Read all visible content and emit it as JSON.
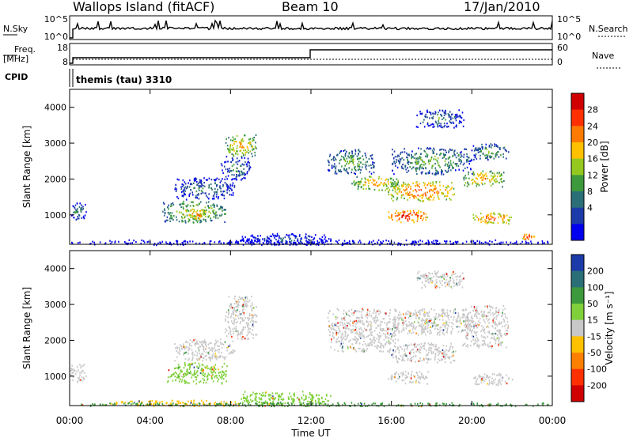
{
  "header": {
    "station": "Wallops Island (fitACF)",
    "beam": "Beam 10",
    "date": "17/Jan/2010"
  },
  "top_panels": {
    "nsky_label": "N.Sky",
    "nsky_top_tick": "10^5",
    "nsky_bottom_tick": "10^0",
    "nsearch_label": "N.Search",
    "nsearch_top_tick": "10^5",
    "nsearch_bottom_tick": "10^0",
    "freq_label_line1": "Freq.",
    "freq_label_line2": "[MHz]",
    "freq_top_tick": "18",
    "freq_bottom_tick": "8",
    "nave_label": "Nave",
    "nave_top_tick": "60",
    "nave_bottom_tick": "0",
    "cpid_label": "CPID",
    "cpid_text": "themis (tau) 3310"
  },
  "power_colorbar": {
    "label": "Power [dB]",
    "ticks": [
      "28",
      "24",
      "20",
      "16",
      "12",
      "8",
      "4"
    ],
    "colors": [
      "#d10000",
      "#ff3000",
      "#ff7a00",
      "#ffc000",
      "#94c81e",
      "#3c9a3c",
      "#2a6e78",
      "#1c3aa8",
      "#0000f0"
    ]
  },
  "velocity_colorbar": {
    "label": "Velocity [m s⁻¹]",
    "ticks": [
      "200",
      "100",
      "50",
      "15",
      "-15",
      "-50",
      "-100",
      "-200"
    ],
    "colors": [
      "#1c3aa8",
      "#2a6e78",
      "#3c9a3c",
      "#7fd03a",
      "#c8c8c8",
      "#ffc000",
      "#ff8000",
      "#ff3000",
      "#d10000"
    ]
  },
  "chart_data": [
    {
      "type": "heatmap",
      "name": "power",
      "ylabel": "Slant Range [km]",
      "y_ticks": [
        "1000",
        "2000",
        "3000",
        "4000"
      ],
      "ylim": [
        180,
        4500
      ],
      "x_ticks": [
        "00:00",
        "04:00",
        "08:00",
        "12:00",
        "16:00",
        "20:00",
        "00:00"
      ],
      "xlim_hours": [
        0,
        24
      ],
      "xlabel": "Time UT",
      "blobs": [
        {
          "t0": 0.0,
          "t1": 0.8,
          "r0": 850,
          "r1": 1350,
          "level": 3
        },
        {
          "t0": 4.6,
          "t1": 7.8,
          "r0": 800,
          "r1": 1400,
          "level": 5
        },
        {
          "t0": 5.9,
          "t1": 6.8,
          "r0": 900,
          "r1": 1150,
          "level": 7
        },
        {
          "t0": 5.2,
          "t1": 8.2,
          "r0": 1450,
          "r1": 2050,
          "level": 3
        },
        {
          "t0": 7.7,
          "t1": 9.3,
          "r0": 2650,
          "r1": 3250,
          "level": 6
        },
        {
          "t0": 7.5,
          "t1": 9.0,
          "r0": 2000,
          "r1": 2650,
          "level": 3
        },
        {
          "t0": 12.8,
          "t1": 15.2,
          "r0": 2150,
          "r1": 2850,
          "level": 4
        },
        {
          "t0": 14.0,
          "t1": 16.4,
          "r0": 1700,
          "r1": 2100,
          "level": 6
        },
        {
          "t0": 15.8,
          "t1": 19.2,
          "r0": 1400,
          "r1": 1950,
          "level": 7
        },
        {
          "t0": 15.8,
          "t1": 17.8,
          "r0": 800,
          "r1": 1150,
          "level": 8
        },
        {
          "t0": 16.0,
          "t1": 20.0,
          "r0": 2150,
          "r1": 2900,
          "level": 4
        },
        {
          "t0": 17.2,
          "t1": 19.6,
          "r0": 3450,
          "r1": 3950,
          "level": 3
        },
        {
          "t0": 19.5,
          "t1": 21.6,
          "r0": 1800,
          "r1": 2250,
          "level": 6
        },
        {
          "t0": 20.0,
          "t1": 21.8,
          "r0": 2550,
          "r1": 3000,
          "level": 4
        },
        {
          "t0": 20.0,
          "t1": 22.0,
          "r0": 750,
          "r1": 1100,
          "level": 7
        },
        {
          "t0": 22.5,
          "t1": 23.1,
          "r0": 300,
          "r1": 500,
          "level": 8
        },
        {
          "t0": 0.0,
          "t1": 24.0,
          "r0": 180,
          "r1": 320,
          "level": 1
        },
        {
          "t0": 8.5,
          "t1": 13.0,
          "r0": 180,
          "r1": 500,
          "level": 2
        }
      ]
    },
    {
      "type": "heatmap",
      "name": "velocity",
      "ylabel": "Slant Range [km]",
      "y_ticks": [
        "1000",
        "2000",
        "3000",
        "4000"
      ],
      "ylim": [
        180,
        4500
      ],
      "x_ticks": [
        "00:00",
        "04:00",
        "08:00",
        "12:00",
        "16:00",
        "20:00",
        "00:00"
      ],
      "xlim_hours": [
        0,
        24
      ],
      "xlabel": "Time UT",
      "blobs": [
        {
          "t0": 0.0,
          "t1": 0.8,
          "r0": 850,
          "r1": 1350,
          "level": 4
        },
        {
          "t0": 4.8,
          "t1": 7.8,
          "r0": 800,
          "r1": 1400,
          "level": 5
        },
        {
          "t0": 5.2,
          "t1": 8.2,
          "r0": 1450,
          "r1": 2050,
          "level": 4
        },
        {
          "t0": 7.7,
          "t1": 9.3,
          "r0": 2000,
          "r1": 3250,
          "level": 4
        },
        {
          "t0": 12.8,
          "t1": 16.4,
          "r0": 1700,
          "r1": 2900,
          "level": 4
        },
        {
          "t0": 15.8,
          "t1": 19.2,
          "r0": 1400,
          "r1": 1950,
          "level": 4
        },
        {
          "t0": 15.8,
          "t1": 17.8,
          "r0": 800,
          "r1": 1150,
          "level": 4
        },
        {
          "t0": 16.0,
          "t1": 20.0,
          "r0": 2150,
          "r1": 2900,
          "level": 4
        },
        {
          "t0": 17.2,
          "t1": 19.6,
          "r0": 3450,
          "r1": 3950,
          "level": 4
        },
        {
          "t0": 19.5,
          "t1": 21.8,
          "r0": 1800,
          "r1": 3000,
          "level": 4
        },
        {
          "t0": 20.0,
          "t1": 22.0,
          "r0": 750,
          "r1": 1100,
          "level": 4
        },
        {
          "t0": 8.5,
          "t1": 13.0,
          "r0": 180,
          "r1": 600,
          "level": 5
        },
        {
          "t0": 2.0,
          "t1": 8.5,
          "r0": 180,
          "r1": 350,
          "level": 3
        },
        {
          "t0": 0.0,
          "t1": 24.0,
          "r0": 180,
          "r1": 280,
          "level": 6
        }
      ]
    }
  ]
}
